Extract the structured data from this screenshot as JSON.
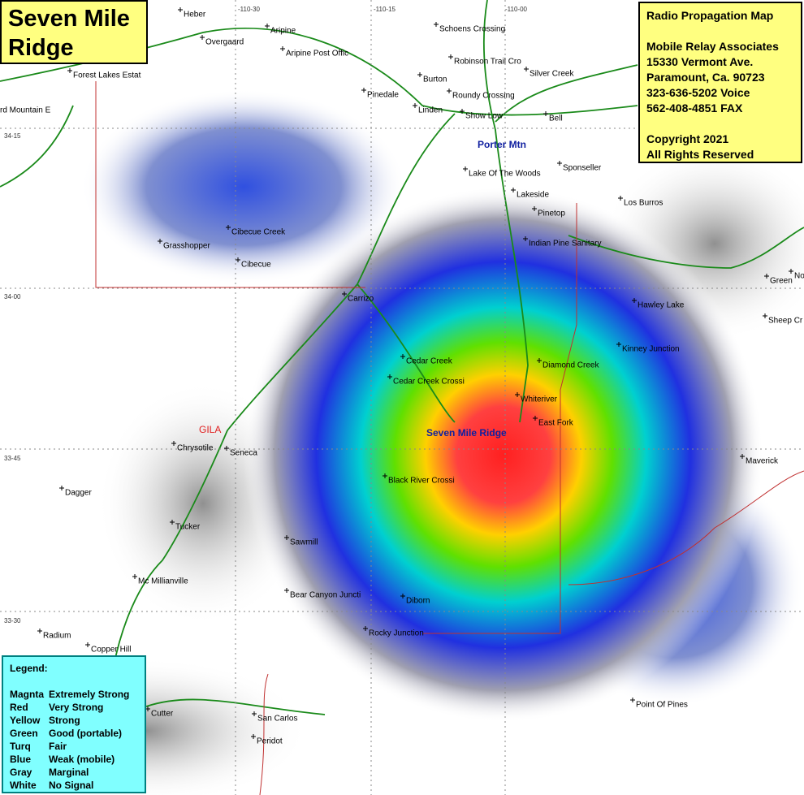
{
  "title": "Seven Mile Ridge",
  "info": {
    "heading": "Radio Propagation Map",
    "lines": [
      "Mobile Relay Associates",
      "15330 Vermont Ave.",
      "Paramount, Ca. 90723",
      "323-636-5202 Voice",
      "562-408-4851 FAX"
    ],
    "copyright": [
      "Copyright 2021",
      "All Rights Reserved"
    ]
  },
  "legend": {
    "title": "Legend:",
    "entries": [
      [
        "Magnta",
        "Extremely Strong"
      ],
      [
        "Red",
        "Very Strong"
      ],
      [
        "Yellow",
        "Strong"
      ],
      [
        "Green",
        "Good (portable)"
      ],
      [
        "Turq",
        "Fair"
      ],
      [
        "Blue",
        "Weak (mobile)"
      ],
      [
        "Gray",
        "Marginal"
      ],
      [
        "White",
        "No Signal"
      ]
    ]
  },
  "coordinates": [
    "-110-30",
    "-110-15",
    "-110-00",
    "34-15",
    "34-00",
    "33-45",
    "33-30"
  ],
  "places": [
    "Heber",
    "Overgaard",
    "Aripine",
    "Aripine Post Offic",
    "Schoens Crossing",
    "Robinson Trail Cro",
    "Silver Creek",
    "Forest Lakes Estat",
    "Burton",
    "Pinedale",
    "Roundy Crossing",
    "Linden",
    "Show Low",
    "Bell",
    "rd Mountain E",
    "Lake Of The Woods",
    "Sponseller",
    "Lakeside",
    "Los Burros",
    "Pinetop",
    "Cibecue Creek",
    "Grasshopper",
    "Indian Pine Sanitary",
    "Cibecue",
    "Green",
    "No",
    "Carrizo",
    "Hawley Lake",
    "Sheep Cr",
    "Kinney Junction",
    "Cedar Creek",
    "Cedar Creek Crossi",
    "Diamond Creek",
    "Whiteriver",
    "East Fork",
    "Chrysotile",
    "Seneca",
    "Maverick",
    "Black River Crossi",
    "Dagger",
    "Tucker",
    "Sawmill",
    "Mc Millianville",
    "Bear Canyon Juncti",
    "Diborn",
    "Radium",
    "Copper Hill",
    "Rocky Junction",
    "Point Of Pines",
    "Cutter",
    "San Carlos",
    "Peridot"
  ],
  "site": "Seven Mile Ridge",
  "peak": "Porter Mtn",
  "county": "GILA"
}
